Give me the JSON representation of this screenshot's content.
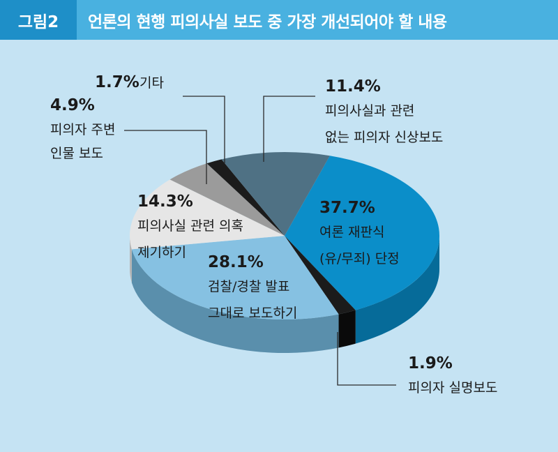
{
  "header": {
    "figure_label": "그림2",
    "title": "언론의 현행 피의사실 보도 중 가장 개선되어야 할 내용"
  },
  "chart_data": {
    "type": "pie",
    "title": "언론의 현행 피의사실 보도 중 가장 개선되어야 할 내용",
    "slices": [
      {
        "pct_text": "37.7%",
        "value": 37.7,
        "label_lines": [
          "여론 재판식",
          "(유/무죄) 단정"
        ],
        "color": "#0b8ec9",
        "side_color": "#066b99"
      },
      {
        "pct_text": "1.9%",
        "value": 1.9,
        "label_lines": [
          "피의자 실명보도"
        ],
        "color": "#1b1b1b",
        "side_color": "#0a0a0a"
      },
      {
        "pct_text": "28.1%",
        "value": 28.1,
        "label_lines": [
          "검찰/경찰 발표",
          "그대로 보도하기"
        ],
        "color": "#86c1e2",
        "side_color": "#5a8fac"
      },
      {
        "pct_text": "14.3%",
        "value": 14.3,
        "label_lines": [
          "피의사실 관련 의혹",
          "제기하기"
        ],
        "color": "#e6e6e6",
        "side_color": "#b4b4b4"
      },
      {
        "pct_text": "4.9%",
        "value": 4.9,
        "label_lines": [
          "피의자 주변",
          "인물 보도"
        ],
        "color": "#9b9b9b",
        "side_color": "#6f6f6f"
      },
      {
        "pct_text": "1.7%",
        "value": 1.7,
        "label_lines": [
          "기타"
        ],
        "color": "#1b1b1b",
        "side_color": "#0a0a0a"
      },
      {
        "pct_text": "11.4%",
        "value": 11.4,
        "label_lines": [
          "피의사실과 관련",
          "없는 피의자 신상보도"
        ],
        "color": "#4f7184",
        "side_color": "#3b5665"
      }
    ]
  }
}
